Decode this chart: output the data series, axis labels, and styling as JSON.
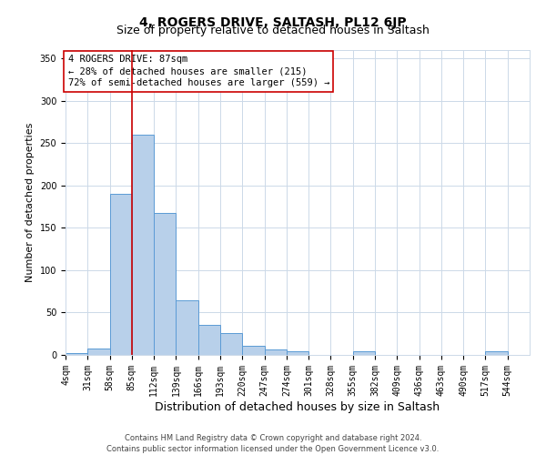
{
  "title": "4, ROGERS DRIVE, SALTASH, PL12 6JP",
  "subtitle": "Size of property relative to detached houses in Saltash",
  "xlabel": "Distribution of detached houses by size in Saltash",
  "ylabel": "Number of detached properties",
  "footer_line1": "Contains HM Land Registry data © Crown copyright and database right 2024.",
  "footer_line2": "Contains public sector information licensed under the Open Government Licence v3.0.",
  "bin_labels": [
    "4sqm",
    "31sqm",
    "58sqm",
    "85sqm",
    "112sqm",
    "139sqm",
    "166sqm",
    "193sqm",
    "220sqm",
    "247sqm",
    "274sqm",
    "301sqm",
    "328sqm",
    "355sqm",
    "382sqm",
    "409sqm",
    "436sqm",
    "463sqm",
    "490sqm",
    "517sqm",
    "544sqm"
  ],
  "bar_values": [
    2,
    8,
    190,
    260,
    168,
    65,
    35,
    26,
    11,
    6,
    4,
    0,
    0,
    4,
    0,
    0,
    0,
    0,
    0,
    4,
    0
  ],
  "bar_color": "#b8d0ea",
  "bar_edge_color": "#5b9bd5",
  "property_line_x": 3,
  "property_line_color": "#cc0000",
  "annotation_line1": "4 ROGERS DRIVE: 87sqm",
  "annotation_line2": "← 28% of detached houses are smaller (215)",
  "annotation_line3": "72% of semi-detached houses are larger (559) →",
  "annotation_box_color": "#ffffff",
  "annotation_box_edge": "#cc0000",
  "ylim": [
    0,
    360
  ],
  "yticks": [
    0,
    50,
    100,
    150,
    200,
    250,
    300,
    350
  ],
  "bg_color": "#ffffff",
  "grid_color": "#ccd9e8",
  "title_fontsize": 10,
  "subtitle_fontsize": 9,
  "axis_label_fontsize": 8,
  "tick_fontsize": 7,
  "annotation_fontsize": 7.5
}
